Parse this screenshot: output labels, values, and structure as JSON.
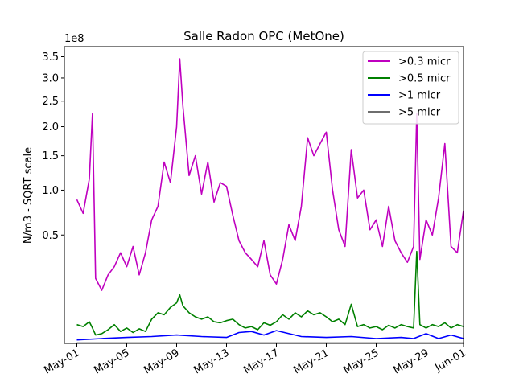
{
  "chart_data": {
    "type": "line",
    "title": "Salle Radon OPC (MetOne)",
    "ylabel": "N/m3 - SQRT scale",
    "xlabel": "",
    "y_scale": "sqrt",
    "y_offset_label": "1e8",
    "ylim": [
      0,
      375000000.0
    ],
    "xlim": [
      "2023-04-30",
      "2023-06-01"
    ],
    "x_tick_labels": [
      "May-01",
      "May-05",
      "May-09",
      "May-13",
      "May-17",
      "May-21",
      "May-25",
      "May-29",
      "Jun-01"
    ],
    "x_tick_dates": [
      "2023-05-01",
      "2023-05-05",
      "2023-05-09",
      "2023-05-13",
      "2023-05-17",
      "2023-05-21",
      "2023-05-25",
      "2023-05-29",
      "2023-06-01"
    ],
    "y_tick_values": [
      50000000.0,
      100000000.0,
      150000000.0,
      200000000.0,
      250000000.0,
      300000000.0,
      350000000.0
    ],
    "y_tick_labels": [
      "0.5",
      "1.0",
      "1.5",
      "2.0",
      "2.5",
      "3.0",
      "3.5"
    ],
    "grid": false,
    "legend_position": "top-right",
    "series": [
      {
        "name": ">0.3 micr",
        "color": "#bf00bf",
        "x": [
          "2023-05-01",
          "2023-05-01 12:00",
          "2023-05-02",
          "2023-05-02 06:00",
          "2023-05-02 12:00",
          "2023-05-03",
          "2023-05-03 12:00",
          "2023-05-04",
          "2023-05-04 12:00",
          "2023-05-05",
          "2023-05-05 12:00",
          "2023-05-06",
          "2023-05-06 12:00",
          "2023-05-07",
          "2023-05-07 12:00",
          "2023-05-08",
          "2023-05-08 12:00",
          "2023-05-09",
          "2023-05-09 06:00",
          "2023-05-09 12:00",
          "2023-05-10",
          "2023-05-10 12:00",
          "2023-05-11",
          "2023-05-11 12:00",
          "2023-05-12",
          "2023-05-12 12:00",
          "2023-05-13",
          "2023-05-13 12:00",
          "2023-05-14",
          "2023-05-14 12:00",
          "2023-05-15",
          "2023-05-15 12:00",
          "2023-05-16",
          "2023-05-16 12:00",
          "2023-05-17",
          "2023-05-17 12:00",
          "2023-05-18",
          "2023-05-18 12:00",
          "2023-05-19",
          "2023-05-19 12:00",
          "2023-05-20",
          "2023-05-20 12:00",
          "2023-05-21",
          "2023-05-21 12:00",
          "2023-05-22",
          "2023-05-22 12:00",
          "2023-05-23",
          "2023-05-23 12:00",
          "2023-05-24",
          "2023-05-24 12:00",
          "2023-05-25",
          "2023-05-25 12:00",
          "2023-05-26",
          "2023-05-26 12:00",
          "2023-05-27",
          "2023-05-27 12:00",
          "2023-05-28",
          "2023-05-28 06:00",
          "2023-05-28 12:00",
          "2023-05-29",
          "2023-05-29 12:00",
          "2023-05-30",
          "2023-05-30 12:00",
          "2023-05-31",
          "2023-05-31 12:00",
          "2023-06-01"
        ],
        "y": [
          88000000.0,
          72000000.0,
          115000000.0,
          225000000.0,
          18000000.0,
          12000000.0,
          20000000.0,
          25000000.0,
          35000000.0,
          25000000.0,
          40000000.0,
          20000000.0,
          35000000.0,
          65000000.0,
          80000000.0,
          140000000.0,
          110000000.0,
          200000000.0,
          345000000.0,
          240000000.0,
          120000000.0,
          150000000.0,
          95000000.0,
          140000000.0,
          85000000.0,
          110000000.0,
          105000000.0,
          70000000.0,
          45000000.0,
          35000000.0,
          30000000.0,
          25000000.0,
          45000000.0,
          20000000.0,
          15000000.0,
          30000000.0,
          60000000.0,
          45000000.0,
          80000000.0,
          180000000.0,
          150000000.0,
          170000000.0,
          190000000.0,
          100000000.0,
          55000000.0,
          40000000.0,
          160000000.0,
          90000000.0,
          100000000.0,
          55000000.0,
          65000000.0,
          40000000.0,
          80000000.0,
          45000000.0,
          35000000.0,
          28000000.0,
          40000000.0,
          225000000.0,
          30000000.0,
          65000000.0,
          50000000.0,
          90000000.0,
          170000000.0,
          40000000.0,
          35000000.0,
          75000000.0
        ]
      },
      {
        "name": ">0.5 micr",
        "color": "#008000",
        "x": [
          "2023-05-01",
          "2023-05-01 12:00",
          "2023-05-02",
          "2023-05-02 06:00",
          "2023-05-02 12:00",
          "2023-05-03",
          "2023-05-03 12:00",
          "2023-05-04",
          "2023-05-04 12:00",
          "2023-05-05",
          "2023-05-05 12:00",
          "2023-05-06",
          "2023-05-06 12:00",
          "2023-05-07",
          "2023-05-07 12:00",
          "2023-05-08",
          "2023-05-08 12:00",
          "2023-05-09",
          "2023-05-09 06:00",
          "2023-05-09 12:00",
          "2023-05-10",
          "2023-05-10 12:00",
          "2023-05-11",
          "2023-05-11 12:00",
          "2023-05-12",
          "2023-05-12 12:00",
          "2023-05-13",
          "2023-05-13 12:00",
          "2023-05-14",
          "2023-05-14 12:00",
          "2023-05-15",
          "2023-05-15 12:00",
          "2023-05-16",
          "2023-05-16 12:00",
          "2023-05-17",
          "2023-05-17 12:00",
          "2023-05-18",
          "2023-05-18 12:00",
          "2023-05-19",
          "2023-05-19 12:00",
          "2023-05-20",
          "2023-05-20 12:00",
          "2023-05-21",
          "2023-05-21 12:00",
          "2023-05-22",
          "2023-05-22 12:00",
          "2023-05-23",
          "2023-05-23 12:00",
          "2023-05-24",
          "2023-05-24 12:00",
          "2023-05-25",
          "2023-05-25 12:00",
          "2023-05-26",
          "2023-05-26 12:00",
          "2023-05-27",
          "2023-05-27 12:00",
          "2023-05-28",
          "2023-05-28 06:00",
          "2023-05-28 12:00",
          "2023-05-29",
          "2023-05-29 12:00",
          "2023-05-30",
          "2023-05-30 12:00",
          "2023-05-31",
          "2023-05-31 12:00",
          "2023-06-01"
        ],
        "y": [
          1500000.0,
          1200000.0,
          2000000.0,
          1000000.0,
          300000.0,
          400000.0,
          800000.0,
          1500000.0,
          600000.0,
          1000000.0,
          500000.0,
          900000.0,
          600000.0,
          2500000.0,
          4000000.0,
          3500000.0,
          5500000.0,
          7000000.0,
          10000000.0,
          6000000.0,
          4000000.0,
          3000000.0,
          2500000.0,
          3000000.0,
          2000000.0,
          1800000.0,
          2200000.0,
          2500000.0,
          1500000.0,
          1000000.0,
          1200000.0,
          800000.0,
          1800000.0,
          1400000.0,
          2000000.0,
          3500000.0,
          2500000.0,
          4000000.0,
          3000000.0,
          4500000.0,
          3500000.0,
          4000000.0,
          3000000.0,
          2000000.0,
          2500000.0,
          1500000.0,
          6500000.0,
          1200000.0,
          1500000.0,
          1000000.0,
          1200000.0,
          800000.0,
          1400000.0,
          1000000.0,
          1500000.0,
          1200000.0,
          1000000.0,
          36000000.0,
          1500000.0,
          1000000.0,
          1500000.0,
          1200000.0,
          1800000.0,
          1000000.0,
          1500000.0,
          1200000.0
        ]
      },
      {
        "name": ">1 micr",
        "color": "#0000ff",
        "x": [
          "2023-05-01",
          "2023-05-03",
          "2023-05-05",
          "2023-05-07",
          "2023-05-09",
          "2023-05-11",
          "2023-05-13",
          "2023-05-14",
          "2023-05-15",
          "2023-05-16",
          "2023-05-17",
          "2023-05-19",
          "2023-05-21",
          "2023-05-23",
          "2023-05-25",
          "2023-05-27",
          "2023-05-28",
          "2023-05-29",
          "2023-05-30",
          "2023-05-31",
          "2023-06-01"
        ],
        "y": [
          50000.0,
          100000.0,
          150000.0,
          200000.0,
          300000.0,
          200000.0,
          150000.0,
          500000.0,
          600000.0,
          300000.0,
          700000.0,
          200000.0,
          150000.0,
          200000.0,
          100000.0,
          150000.0,
          100000.0,
          400000.0,
          100000.0,
          300000.0,
          100000.0
        ]
      },
      {
        "name": ">5 micr",
        "color": "#6e6e6e",
        "x": [
          "2023-05-01",
          "2023-06-01"
        ],
        "y": [
          1000.0,
          1000.0
        ]
      }
    ]
  }
}
